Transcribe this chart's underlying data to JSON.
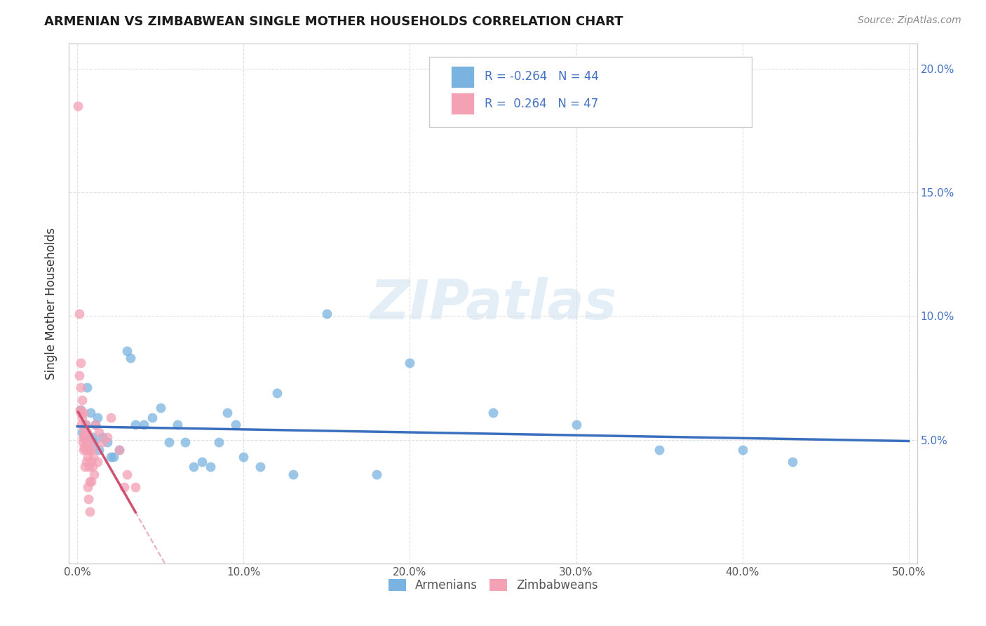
{
  "title": "ARMENIAN VS ZIMBABWEAN SINGLE MOTHER HOUSEHOLDS CORRELATION CHART",
  "source": "Source: ZipAtlas.com",
  "ylabel": "Single Mother Households",
  "xlim": [
    -0.005,
    0.505
  ],
  "ylim": [
    0.0,
    0.21
  ],
  "xticks": [
    0.0,
    0.1,
    0.2,
    0.3,
    0.4,
    0.5
  ],
  "yticks": [
    0.0,
    0.05,
    0.1,
    0.15,
    0.2
  ],
  "armenian_color": "#7ab3e0",
  "armenian_alpha": 0.75,
  "zimbabwean_color": "#f4a0b5",
  "zimbabwean_alpha": 0.75,
  "armenian_trendline_color": "#3a6fbe",
  "zimbabwean_trendline_solid_color": "#d05070",
  "zimbabwean_trendline_dashed_color": "#e8a0b0",
  "legend_R_armenian": "-0.264",
  "legend_N_armenian": "44",
  "legend_R_zimbabwean": " 0.264",
  "legend_N_zimbabwean": "47",
  "watermark": "ZIPatlas",
  "scatter_size": 100,
  "armenian_scatter": [
    [
      0.002,
      0.062
    ],
    [
      0.003,
      0.053
    ],
    [
      0.004,
      0.051
    ],
    [
      0.005,
      0.056
    ],
    [
      0.006,
      0.071
    ],
    [
      0.007,
      0.046
    ],
    [
      0.008,
      0.061
    ],
    [
      0.009,
      0.051
    ],
    [
      0.01,
      0.049
    ],
    [
      0.011,
      0.056
    ],
    [
      0.012,
      0.059
    ],
    [
      0.013,
      0.046
    ],
    [
      0.015,
      0.051
    ],
    [
      0.018,
      0.049
    ],
    [
      0.02,
      0.043
    ],
    [
      0.022,
      0.043
    ],
    [
      0.025,
      0.046
    ],
    [
      0.03,
      0.086
    ],
    [
      0.032,
      0.083
    ],
    [
      0.035,
      0.056
    ],
    [
      0.04,
      0.056
    ],
    [
      0.045,
      0.059
    ],
    [
      0.05,
      0.063
    ],
    [
      0.055,
      0.049
    ],
    [
      0.06,
      0.056
    ],
    [
      0.065,
      0.049
    ],
    [
      0.07,
      0.039
    ],
    [
      0.075,
      0.041
    ],
    [
      0.08,
      0.039
    ],
    [
      0.085,
      0.049
    ],
    [
      0.09,
      0.061
    ],
    [
      0.095,
      0.056
    ],
    [
      0.1,
      0.043
    ],
    [
      0.11,
      0.039
    ],
    [
      0.12,
      0.069
    ],
    [
      0.13,
      0.036
    ],
    [
      0.15,
      0.101
    ],
    [
      0.18,
      0.036
    ],
    [
      0.2,
      0.081
    ],
    [
      0.25,
      0.061
    ],
    [
      0.3,
      0.056
    ],
    [
      0.35,
      0.046
    ],
    [
      0.4,
      0.046
    ],
    [
      0.43,
      0.041
    ]
  ],
  "zimbabwean_scatter": [
    [
      0.0005,
      0.185
    ],
    [
      0.001,
      0.101
    ],
    [
      0.0012,
      0.076
    ],
    [
      0.0015,
      0.062
    ],
    [
      0.0018,
      0.081
    ],
    [
      0.002,
      0.071
    ],
    [
      0.0022,
      0.061
    ],
    [
      0.0025,
      0.056
    ],
    [
      0.0028,
      0.066
    ],
    [
      0.003,
      0.059
    ],
    [
      0.0032,
      0.051
    ],
    [
      0.0033,
      0.049
    ],
    [
      0.0035,
      0.046
    ],
    [
      0.0038,
      0.061
    ],
    [
      0.004,
      0.053
    ],
    [
      0.0042,
      0.047
    ],
    [
      0.0044,
      0.039
    ],
    [
      0.0048,
      0.056
    ],
    [
      0.005,
      0.051
    ],
    [
      0.0052,
      0.046
    ],
    [
      0.0054,
      0.041
    ],
    [
      0.0058,
      0.053
    ],
    [
      0.006,
      0.049
    ],
    [
      0.0062,
      0.043
    ],
    [
      0.0064,
      0.031
    ],
    [
      0.0066,
      0.026
    ],
    [
      0.007,
      0.046
    ],
    [
      0.0072,
      0.039
    ],
    [
      0.0074,
      0.033
    ],
    [
      0.0076,
      0.021
    ],
    [
      0.008,
      0.049
    ],
    [
      0.0082,
      0.041
    ],
    [
      0.0084,
      0.033
    ],
    [
      0.0088,
      0.046
    ],
    [
      0.009,
      0.039
    ],
    [
      0.0095,
      0.043
    ],
    [
      0.01,
      0.036
    ],
    [
      0.011,
      0.056
    ],
    [
      0.012,
      0.041
    ],
    [
      0.013,
      0.053
    ],
    [
      0.015,
      0.049
    ],
    [
      0.018,
      0.051
    ],
    [
      0.02,
      0.059
    ],
    [
      0.025,
      0.046
    ],
    [
      0.028,
      0.031
    ],
    [
      0.03,
      0.036
    ],
    [
      0.035,
      0.031
    ]
  ]
}
